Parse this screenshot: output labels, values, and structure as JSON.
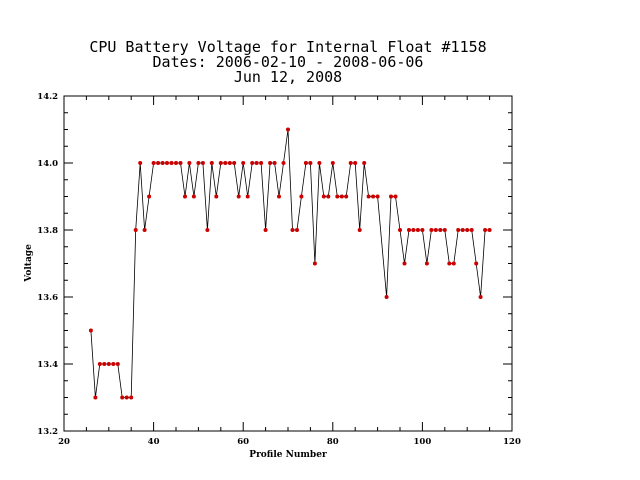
{
  "chart_data": {
    "type": "line",
    "title_lines": [
      "CPU Battery Voltage for Internal Float #1158",
      "Dates:  2006-02-10 -  2008-06-06",
      "Jun 12, 2008"
    ],
    "xlabel": "Profile Number",
    "ylabel": "Voltage",
    "xlim": [
      20,
      120
    ],
    "ylim": [
      13.2,
      14.2
    ],
    "xticks": [
      "20",
      "40",
      "60",
      "80",
      "100",
      "120"
    ],
    "yticks": [
      "13.2",
      "13.4",
      "13.6",
      "13.8",
      "14.0",
      "14.2"
    ],
    "grid": false,
    "line_color": "#000000",
    "marker_color": "#cc0000",
    "x": [
      26,
      27,
      28,
      29,
      30,
      31,
      32,
      33,
      34,
      35,
      36,
      37,
      38,
      39,
      40,
      41,
      42,
      43,
      44,
      45,
      46,
      47,
      48,
      49,
      50,
      51,
      52,
      53,
      54,
      55,
      56,
      57,
      58,
      59,
      60,
      61,
      62,
      63,
      64,
      65,
      66,
      67,
      68,
      69,
      70,
      71,
      72,
      73,
      74,
      75,
      76,
      77,
      78,
      79,
      80,
      81,
      82,
      83,
      84,
      85,
      86,
      87,
      88,
      89,
      90,
      92,
      93,
      94,
      95,
      96,
      97,
      98,
      99,
      100,
      101,
      102,
      103,
      104,
      105,
      106,
      107,
      108,
      109,
      110,
      111,
      112,
      113,
      114,
      115
    ],
    "y": [
      13.5,
      13.3,
      13.4,
      13.4,
      13.4,
      13.4,
      13.4,
      13.3,
      13.3,
      13.3,
      13.8,
      14.0,
      13.8,
      13.9,
      14.0,
      14.0,
      14.0,
      14.0,
      14.0,
      14.0,
      14.0,
      13.9,
      14.0,
      13.9,
      14.0,
      14.0,
      13.8,
      14.0,
      13.9,
      14.0,
      14.0,
      14.0,
      14.0,
      13.9,
      14.0,
      13.9,
      14.0,
      14.0,
      14.0,
      13.8,
      14.0,
      14.0,
      13.9,
      14.0,
      14.1,
      13.8,
      13.8,
      13.9,
      14.0,
      14.0,
      13.7,
      14.0,
      13.9,
      13.9,
      14.0,
      13.9,
      13.9,
      13.9,
      14.0,
      14.0,
      13.8,
      14.0,
      13.9,
      13.9,
      13.9,
      13.6,
      13.9,
      13.9,
      13.8,
      13.7,
      13.8,
      13.8,
      13.8,
      13.8,
      13.7,
      13.8,
      13.8,
      13.8,
      13.8,
      13.7,
      13.7,
      13.8,
      13.8,
      13.8,
      13.8,
      13.7,
      13.6,
      13.8,
      13.8
    ]
  }
}
